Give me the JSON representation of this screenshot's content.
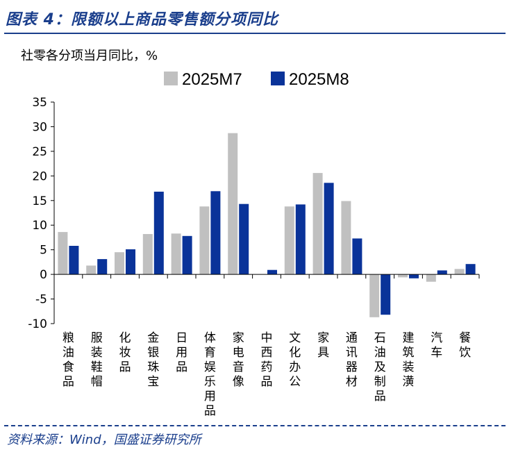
{
  "figure_title": "图表 4：限额以上商品零售额分项同比",
  "source": "资料来源：Wind，国盛证券研究所",
  "colors": {
    "title": "#1a3e8c",
    "m7": "#c0c0c0",
    "m8": "#0a3399"
  },
  "chart_data": {
    "type": "bar",
    "ylabel": "社零各分项当月同比，%",
    "ylim": [
      -10,
      35
    ],
    "yticks": [
      -10,
      -5,
      0,
      5,
      10,
      15,
      20,
      25,
      30,
      35
    ],
    "categories": [
      "粮油食品",
      "服装鞋帽",
      "化妆品",
      "金银珠宝",
      "日用品",
      "体育娱乐用品",
      "家电音像",
      "中西药品",
      "文化办公",
      "家具",
      "通讯器材",
      "石油及制品",
      "建筑装潢",
      "汽车",
      "餐饮"
    ],
    "series": [
      {
        "name": "2025M7",
        "values": [
          8.6,
          1.8,
          4.5,
          8.2,
          8.3,
          13.8,
          28.7,
          0.0,
          13.8,
          20.6,
          14.9,
          -8.7,
          -0.6,
          -1.5,
          1.1
        ]
      },
      {
        "name": "2025M8",
        "values": [
          5.8,
          3.1,
          5.1,
          16.8,
          7.8,
          16.9,
          14.3,
          0.9,
          14.2,
          18.6,
          7.3,
          -8.2,
          -0.8,
          0.8,
          2.1
        ]
      }
    ]
  }
}
